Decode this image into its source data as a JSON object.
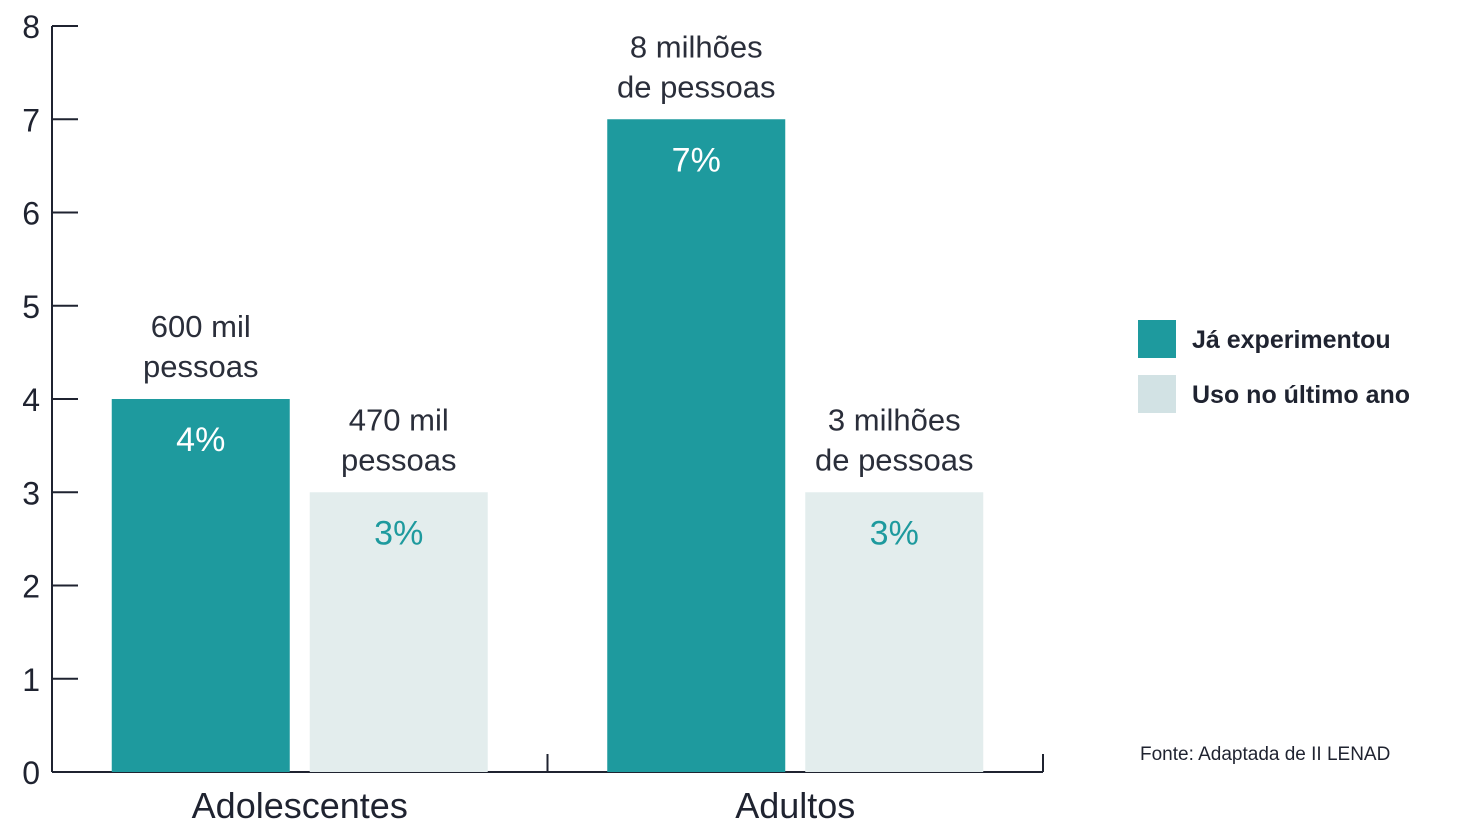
{
  "chart_data": {
    "type": "bar",
    "categories": [
      "Adolescentes",
      "Adultos"
    ],
    "ylim": [
      0,
      8
    ],
    "yticks": [
      0,
      1,
      2,
      3,
      4,
      5,
      6,
      7,
      8
    ],
    "grid": false,
    "legend_position": "right",
    "series": [
      {
        "name": "Já experimentou",
        "color": "#1e9a9e",
        "label_color": "#ffffff",
        "values": [
          4,
          7
        ],
        "value_labels": [
          "4%",
          "7%"
        ],
        "annotations": [
          [
            "600 mil",
            "pessoas"
          ],
          [
            "8 milhões",
            "de pessoas"
          ]
        ]
      },
      {
        "name": "Uso no último ano",
        "color": "#e3eded",
        "label_color": "#1e9a9e",
        "values": [
          3,
          3
        ],
        "value_labels": [
          "3%",
          "3%"
        ],
        "annotations": [
          [
            "470 mil",
            "pessoas"
          ],
          [
            "3 milhões",
            "de pessoas"
          ]
        ]
      }
    ],
    "legend": {
      "items": [
        {
          "label": "Já experimentou",
          "color": "#1e9a9e"
        },
        {
          "label": "Uso no último ano",
          "color": "#d2e2e4"
        }
      ]
    },
    "source": "Fonte: Adaptada de II LENAD"
  }
}
